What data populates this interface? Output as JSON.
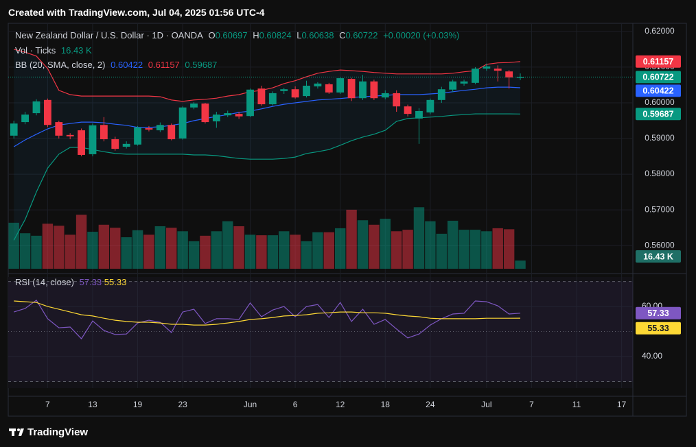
{
  "header": {
    "created": "Created with TradingView.com, Jul 04, 2025 01:56 UTC-4"
  },
  "chart_data": {
    "type": "candlestick",
    "title": "New Zealand Dollar / U.S. Dollar · 1D · OANDA",
    "ohlc_legend": {
      "o_label": "O",
      "h_label": "H",
      "l_label": "L",
      "c_label": "C",
      "change": "+0.00020 (+0.03%)"
    },
    "up_color": "#089981",
    "down_color": "#f23645",
    "xlim": [
      -0.5,
      55
    ],
    "xticks": [
      {
        "value": 3,
        "label": "7"
      },
      {
        "value": 7,
        "label": "13"
      },
      {
        "value": 11,
        "label": "19"
      },
      {
        "value": 15,
        "label": "23"
      },
      {
        "value": 21,
        "label": "Jun"
      },
      {
        "value": 25,
        "label": "6"
      },
      {
        "value": 29,
        "label": "12"
      },
      {
        "value": 33,
        "label": "18"
      },
      {
        "value": 37,
        "label": "24"
      },
      {
        "value": 42,
        "label": "Jul"
      },
      {
        "value": 46,
        "label": "7"
      },
      {
        "value": 50,
        "label": "11"
      },
      {
        "value": 54,
        "label": "17"
      }
    ],
    "ylim": [
      0.5535,
      0.6219
    ],
    "yticks": [
      {
        "value": 0.62,
        "label": "0.62000"
      },
      {
        "value": 0.61,
        "label": "0.61000"
      },
      {
        "value": 0.6,
        "label": "0.60000"
      },
      {
        "value": 0.59,
        "label": "0.59000"
      },
      {
        "value": 0.58,
        "label": "0.58000"
      },
      {
        "value": 0.57,
        "label": "0.57000"
      },
      {
        "value": 0.56,
        "label": "0.56000"
      }
    ],
    "open": [
      0.5908,
      0.5946,
      0.5971,
      0.6008,
      0.5946,
      0.591,
      0.5923,
      0.5856,
      0.5938,
      0.5898,
      0.5877,
      0.5883,
      0.5929,
      0.5923,
      0.5938,
      0.59,
      0.5987,
      0.5998,
      0.5948,
      0.5965,
      0.5969,
      0.5963,
      0.604,
      0.5996,
      0.6033,
      0.6038,
      0.6019,
      0.6046,
      0.6052,
      0.6029,
      0.6067,
      0.6013,
      0.606,
      0.6015,
      0.6027,
      0.599,
      0.5956,
      0.5973,
      0.6008,
      0.6037,
      0.6054,
      0.6056,
      0.6096,
      0.6096,
      0.6088,
      0.60697
    ],
    "high": [
      0.595,
      0.5975,
      0.601,
      0.6012,
      0.595,
      0.5915,
      0.5928,
      0.5942,
      0.596,
      0.5905,
      0.5892,
      0.5935,
      0.5935,
      0.5945,
      0.5942,
      0.599,
      0.6002,
      0.6,
      0.5975,
      0.5978,
      0.5975,
      0.604,
      0.6048,
      0.6032,
      0.6042,
      0.6046,
      0.6062,
      0.6058,
      0.6056,
      0.6072,
      0.607,
      0.6078,
      0.6065,
      0.6035,
      0.6035,
      0.5995,
      0.5985,
      0.6012,
      0.6045,
      0.6065,
      0.6065,
      0.61,
      0.611,
      0.6105,
      0.6092,
      0.60824
    ],
    "low": [
      0.59,
      0.594,
      0.5965,
      0.5932,
      0.59,
      0.5898,
      0.585,
      0.585,
      0.5892,
      0.5866,
      0.5872,
      0.588,
      0.592,
      0.5918,
      0.5895,
      0.5897,
      0.5982,
      0.5942,
      0.593,
      0.596,
      0.5955,
      0.596,
      0.5992,
      0.5993,
      0.6025,
      0.6012,
      0.6015,
      0.604,
      0.6025,
      0.6025,
      0.6005,
      0.6008,
      0.6008,
      0.601,
      0.5975,
      0.5962,
      0.5885,
      0.5968,
      0.6,
      0.603,
      0.6048,
      0.6052,
      0.609,
      0.606,
      0.604,
      0.60638
    ],
    "close": [
      0.5942,
      0.5967,
      0.6004,
      0.5938,
      0.5908,
      0.5906,
      0.5854,
      0.5937,
      0.5898,
      0.5871,
      0.5885,
      0.5931,
      0.5925,
      0.5938,
      0.5898,
      0.5987,
      0.5998,
      0.5946,
      0.5967,
      0.5971,
      0.5962,
      0.6037,
      0.5996,
      0.6027,
      0.6038,
      0.6015,
      0.6048,
      0.6054,
      0.6029,
      0.6069,
      0.6013,
      0.606,
      0.6013,
      0.6027,
      0.599,
      0.5969,
      0.5977,
      0.6008,
      0.6038,
      0.606,
      0.606,
      0.6096,
      0.6102,
      0.609,
      0.6071,
      0.60722
    ],
    "volume": {
      "name": "Vol · Ticks",
      "last_value_label": "16.43 K",
      "vlim": [
        0,
        488
      ],
      "values": [
        92,
        71,
        66,
        90,
        86,
        68,
        108,
        74,
        88,
        82,
        63,
        77,
        68,
        85,
        82,
        75,
        55,
        66,
        75,
        95,
        85,
        68,
        67,
        67,
        75,
        68,
        55,
        73,
        73,
        81,
        118,
        97,
        88,
        100,
        75,
        78,
        123,
        95,
        70,
        96,
        78,
        78,
        75,
        81,
        79,
        16.43
      ]
    },
    "bollinger": {
      "name": "BB (20, SMA, close, 2)",
      "middle": {
        "color": "#2962ff",
        "values": [
          0.5877,
          0.5896,
          0.5912,
          0.5927,
          0.5938,
          0.5942,
          0.5946,
          0.5946,
          0.5944,
          0.594,
          0.5937,
          0.5931,
          0.5931,
          0.5933,
          0.5937,
          0.5942,
          0.595,
          0.5956,
          0.5962,
          0.5967,
          0.5973,
          0.5977,
          0.5983,
          0.599,
          0.5996,
          0.6,
          0.6004,
          0.6008,
          0.601,
          0.6012,
          0.6015,
          0.6017,
          0.6019,
          0.6021,
          0.6023,
          0.6023,
          0.6023,
          0.6025,
          0.6027,
          0.6031,
          0.6035,
          0.6038,
          0.6042,
          0.6044,
          0.6044,
          0.60422
        ]
      },
      "upper": {
        "color": "#f23645",
        "values": [
          0.615,
          0.6142,
          0.6131,
          0.6096,
          0.6035,
          0.6023,
          0.6019,
          0.6019,
          0.6019,
          0.6019,
          0.6019,
          0.6019,
          0.6019,
          0.6017,
          0.6008,
          0.6004,
          0.6008,
          0.601,
          0.6013,
          0.6019,
          0.6023,
          0.6031,
          0.6035,
          0.6042,
          0.6054,
          0.6062,
          0.6073,
          0.6083,
          0.6088,
          0.6092,
          0.609,
          0.6088,
          0.6085,
          0.6083,
          0.6081,
          0.6081,
          0.6081,
          0.6081,
          0.6081,
          0.6083,
          0.6087,
          0.609,
          0.6108,
          0.6112,
          0.6113,
          0.61157
        ]
      },
      "lower": {
        "color": "#089981",
        "values": [
          0.5615,
          0.5673,
          0.575,
          0.5817,
          0.5856,
          0.5875,
          0.5875,
          0.5869,
          0.5863,
          0.5858,
          0.5856,
          0.5856,
          0.5856,
          0.5856,
          0.5856,
          0.5856,
          0.5854,
          0.5854,
          0.5852,
          0.5848,
          0.5844,
          0.5842,
          0.5842,
          0.5842,
          0.5844,
          0.5848,
          0.5858,
          0.5863,
          0.5869,
          0.5881,
          0.5894,
          0.5904,
          0.5912,
          0.5923,
          0.5948,
          0.5956,
          0.5958,
          0.596,
          0.5962,
          0.5965,
          0.5967,
          0.5969,
          0.5969,
          0.5969,
          0.5969,
          0.59687
        ]
      }
    },
    "rsi": {
      "name": "RSI (14, close)",
      "ylim": [
        27.4,
        71.8
      ],
      "yticks": [
        {
          "value": 60,
          "label": "60.00"
        },
        {
          "value": 40,
          "label": "40.00"
        }
      ],
      "levels": [
        70,
        50,
        30
      ],
      "series": [
        {
          "color": "#7e57c2",
          "values": [
            57.8,
            59.2,
            62.5,
            55.1,
            51.5,
            51.8,
            47.1,
            54.2,
            50.4,
            48.8,
            49.0,
            53.4,
            54.5,
            53.7,
            49.6,
            57.8,
            58.9,
            53.2,
            55.1,
            55.1,
            54.8,
            61.4,
            55.9,
            58.6,
            60.0,
            55.9,
            60.0,
            60.8,
            55.6,
            61.6,
            54.0,
            58.9,
            52.9,
            54.8,
            51.0,
            47.4,
            49.0,
            52.6,
            55.1,
            57.0,
            57.3,
            62.2,
            61.9,
            60.3,
            57.0,
            57.33
          ]
        },
        {
          "color": "#fdd835",
          "values": [
            62.2,
            61.9,
            61.6,
            60.0,
            58.9,
            57.8,
            56.7,
            56.2,
            55.3,
            54.5,
            54.0,
            53.7,
            53.7,
            53.4,
            52.9,
            52.9,
            52.6,
            52.6,
            52.9,
            53.4,
            54.0,
            54.8,
            55.1,
            55.6,
            56.2,
            56.4,
            56.7,
            57.3,
            57.5,
            57.8,
            57.8,
            57.5,
            57.5,
            57.3,
            56.7,
            56.2,
            55.9,
            55.3,
            55.1,
            55.1,
            55.1,
            55.1,
            55.3,
            55.3,
            55.3,
            55.33
          ]
        }
      ]
    }
  },
  "footer": {
    "brand": "TradingView"
  }
}
